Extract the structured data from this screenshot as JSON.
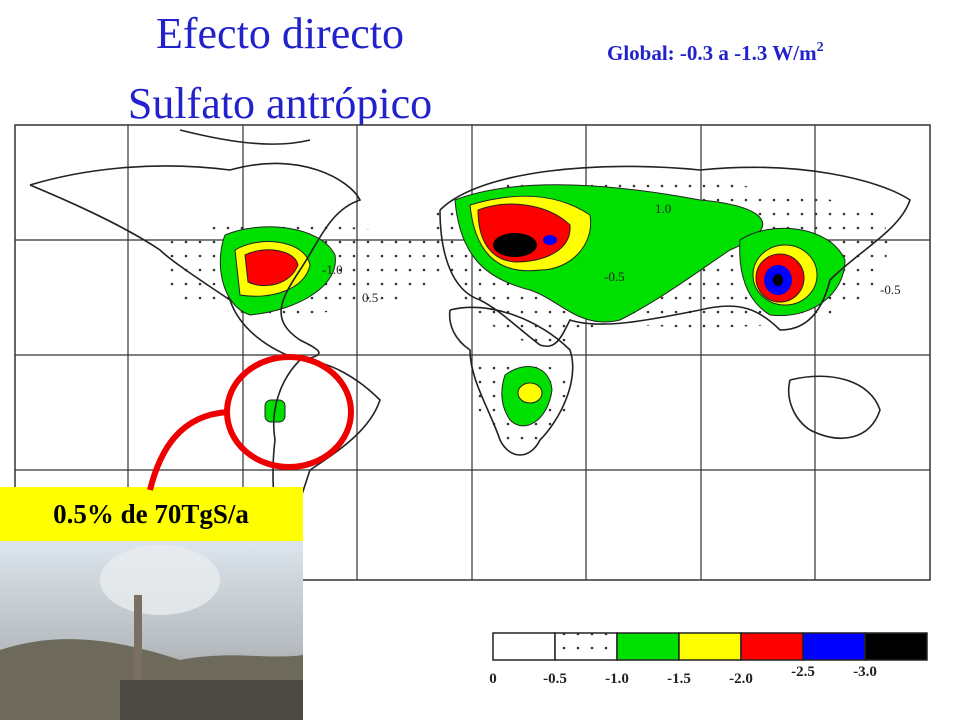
{
  "title": {
    "line1": "Efecto directo",
    "line2": "Sulfato antrópico"
  },
  "global_label": {
    "text": "Global: -0.3 a -1.3 W/m",
    "superscript": "2"
  },
  "map": {
    "contour_labels": [
      "-1.0",
      "0.5",
      "1.0",
      "-0.5",
      "-0.5"
    ]
  },
  "legend": {
    "labels": [
      "0",
      "-0.5",
      "-1.0",
      "-1.5",
      "-2.0",
      "-2.5",
      "-3.0"
    ],
    "colors": [
      "#ffffff",
      "#ffffff",
      "#00e000",
      "#ffff00",
      "#ff0000",
      "#0000ff",
      "#000000"
    ]
  },
  "annotation": "0.5% de 70TgS/a"
}
